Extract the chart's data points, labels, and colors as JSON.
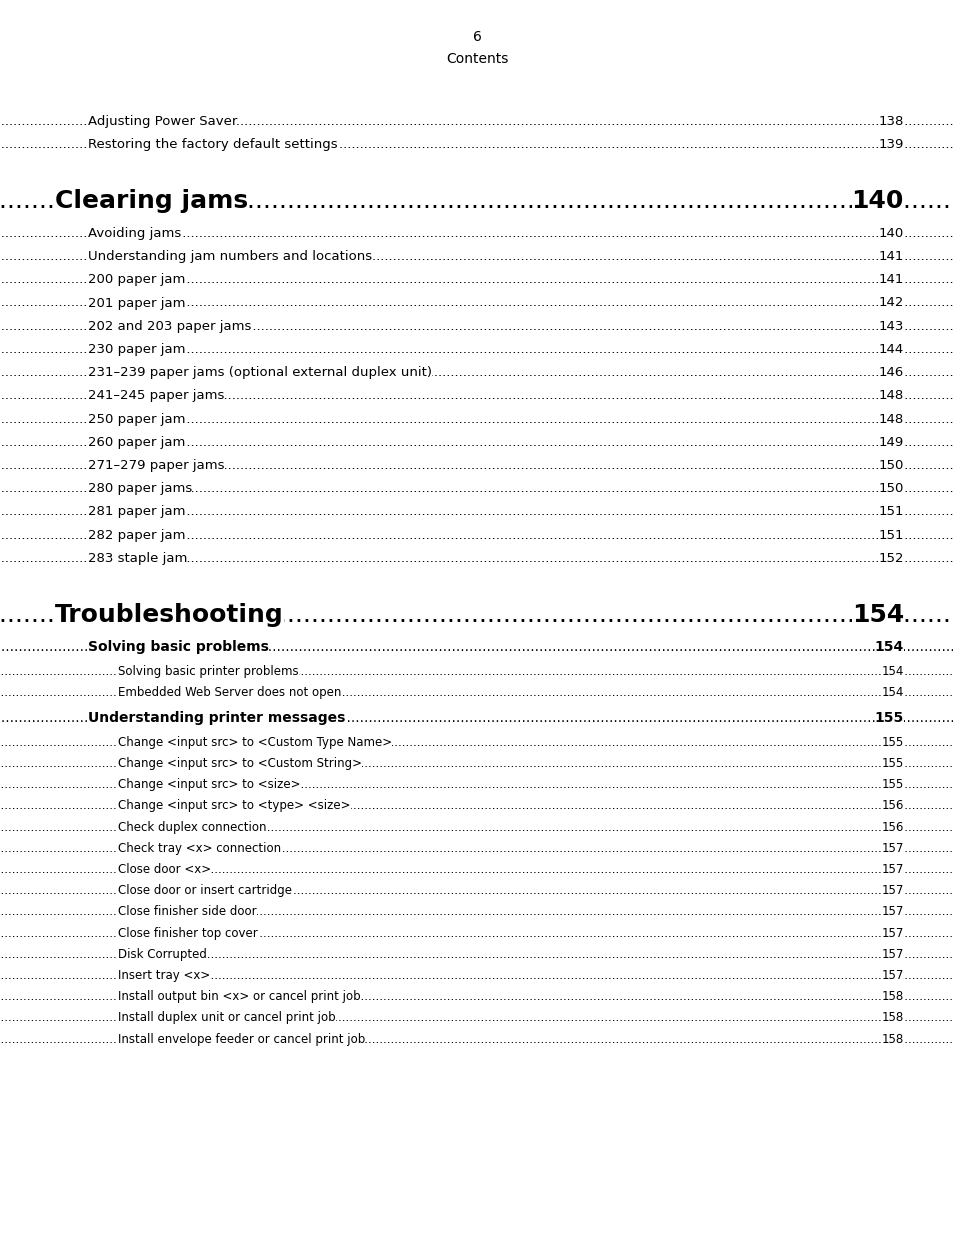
{
  "bg_color": "#ffffff",
  "page_width": 9.54,
  "page_height": 12.35,
  "footer_label": "Contents",
  "footer_num": "6",
  "entries": [
    {
      "level": 2,
      "text": "Adjusting Power Saver",
      "page": "138",
      "indent": 0.88
    },
    {
      "level": 2,
      "text": "Restoring the factory default settings",
      "page": "139",
      "indent": 0.88
    },
    {
      "level": 0,
      "text": "Clearing jams",
      "page": "140",
      "indent": 0.55
    },
    {
      "level": 2,
      "text": "Avoiding jams",
      "page": "140",
      "indent": 0.88
    },
    {
      "level": 2,
      "text": "Understanding jam numbers and locations",
      "page": "141",
      "indent": 0.88
    },
    {
      "level": 2,
      "text": "200 paper jam",
      "page": "141",
      "indent": 0.88
    },
    {
      "level": 2,
      "text": "201 paper jam",
      "page": "142",
      "indent": 0.88
    },
    {
      "level": 2,
      "text": "202 and 203 paper jams",
      "page": "143",
      "indent": 0.88
    },
    {
      "level": 2,
      "text": "230 paper jam",
      "page": "144",
      "indent": 0.88
    },
    {
      "level": 2,
      "text": "231–239 paper jams (optional external duplex unit)",
      "page": "146",
      "indent": 0.88
    },
    {
      "level": 2,
      "text": "241–245 paper jams",
      "page": "148",
      "indent": 0.88
    },
    {
      "level": 2,
      "text": "250 paper jam",
      "page": "148",
      "indent": 0.88
    },
    {
      "level": 2,
      "text": "260 paper jam",
      "page": "149",
      "indent": 0.88
    },
    {
      "level": 2,
      "text": "271–279 paper jams",
      "page": "150",
      "indent": 0.88
    },
    {
      "level": 2,
      "text": "280 paper jams",
      "page": "150",
      "indent": 0.88
    },
    {
      "level": 2,
      "text": "281 paper jam",
      "page": "151",
      "indent": 0.88
    },
    {
      "level": 2,
      "text": "282 paper jam",
      "page": "151",
      "indent": 0.88
    },
    {
      "level": 2,
      "text": "283 staple jam",
      "page": "152",
      "indent": 0.88
    },
    {
      "level": 0,
      "text": "Troubleshooting",
      "page": "154",
      "indent": 0.55
    },
    {
      "level": 1,
      "text": "Solving basic problems",
      "page": "154",
      "indent": 0.88
    },
    {
      "level": 3,
      "text": "Solving basic printer problems",
      "page": "154",
      "indent": 1.18
    },
    {
      "level": 3,
      "text": "Embedded Web Server does not open",
      "page": "154",
      "indent": 1.18
    },
    {
      "level": 1,
      "text": "Understanding printer messages",
      "page": "155",
      "indent": 0.88
    },
    {
      "level": 3,
      "text": "Change <input src> to <Custom Type Name>",
      "page": "155",
      "indent": 1.18
    },
    {
      "level": 3,
      "text": "Change <input src> to <Custom String>",
      "page": "155",
      "indent": 1.18
    },
    {
      "level": 3,
      "text": "Change <input src> to <size>",
      "page": "155",
      "indent": 1.18
    },
    {
      "level": 3,
      "text": "Change <input src> to <type> <size>",
      "page": "156",
      "indent": 1.18
    },
    {
      "level": 3,
      "text": "Check duplex connection",
      "page": "156",
      "indent": 1.18
    },
    {
      "level": 3,
      "text": "Check tray <x> connection",
      "page": "157",
      "indent": 1.18
    },
    {
      "level": 3,
      "text": "Close door <x>",
      "page": "157",
      "indent": 1.18
    },
    {
      "level": 3,
      "text": "Close door or insert cartridge",
      "page": "157",
      "indent": 1.18
    },
    {
      "level": 3,
      "text": "Close finisher side door",
      "page": "157",
      "indent": 1.18
    },
    {
      "level": 3,
      "text": "Close finisher top cover",
      "page": "157",
      "indent": 1.18
    },
    {
      "level": 3,
      "text": "Disk Corrupted",
      "page": "157",
      "indent": 1.18
    },
    {
      "level": 3,
      "text": "Insert tray <x>",
      "page": "157",
      "indent": 1.18
    },
    {
      "level": 3,
      "text": "Install output bin <x> or cancel print job",
      "page": "158",
      "indent": 1.18
    },
    {
      "level": 3,
      "text": "Install duplex unit or cancel print job",
      "page": "158",
      "indent": 1.18
    },
    {
      "level": 3,
      "text": "Install envelope feeder or cancel print job",
      "page": "158",
      "indent": 1.18
    }
  ]
}
